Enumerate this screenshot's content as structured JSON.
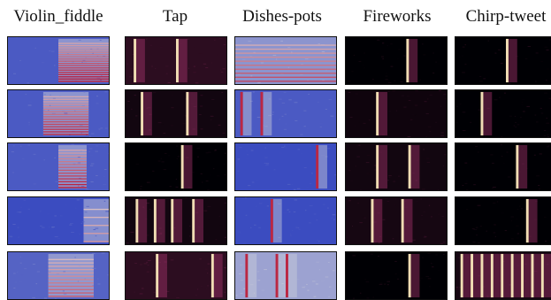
{
  "figure": {
    "columns": [
      {
        "title": "Violin_fiddle",
        "colormap": "coolwarm"
      },
      {
        "title": "Tap",
        "colormap": "magma"
      },
      {
        "title": "Dishes-pots",
        "colormap": "coolwarm"
      },
      {
        "title": "Fireworks",
        "colormap": "magma"
      },
      {
        "title": "Chirp-tweet",
        "colormap": "magma"
      }
    ],
    "rows": 5,
    "panel_type": "spectrogram",
    "colors": {
      "coolwarm_low": "#3b4cc0",
      "coolwarm_mid": "#dddcdc",
      "coolwarm_high": "#b40426",
      "magma_low": "#000004",
      "magma_mid": "#b73779",
      "magma_high": "#fcfdbf"
    }
  }
}
